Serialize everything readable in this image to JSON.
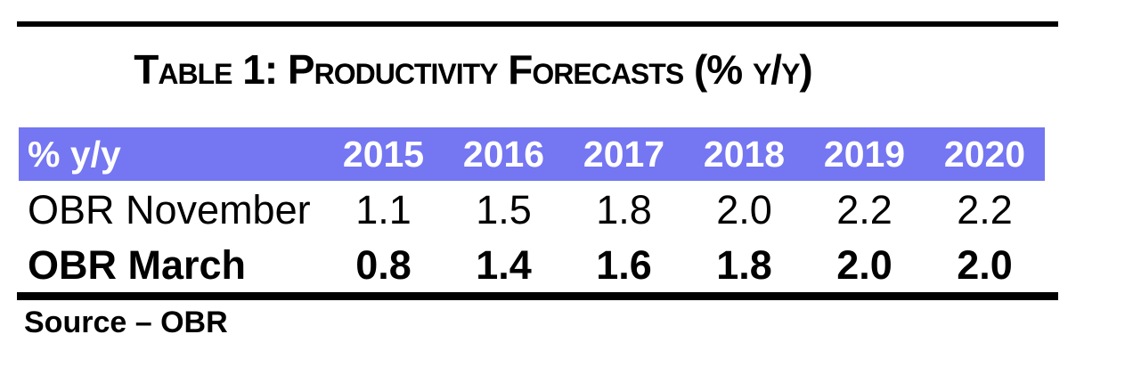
{
  "page": {
    "title": "Table 1: Productivity Forecasts (% y/y)",
    "source_note": "Source – OBR"
  },
  "table": {
    "header": {
      "label": "% y/y",
      "years": [
        "2015",
        "2016",
        "2017",
        "2018",
        "2019",
        "2020"
      ]
    },
    "rows": [
      {
        "label": "OBR November",
        "values": [
          "1.1",
          "1.5",
          "1.8",
          "2.0",
          "2.2",
          "2.2"
        ]
      },
      {
        "label": "OBR March",
        "values": [
          "0.8",
          "1.4",
          "1.6",
          "1.8",
          "2.0",
          "2.0"
        ]
      }
    ]
  },
  "colors": {
    "header_background": "#7476F2",
    "header_text": "#FFFFFF",
    "body_text": "#000000",
    "rule": "#000000"
  }
}
